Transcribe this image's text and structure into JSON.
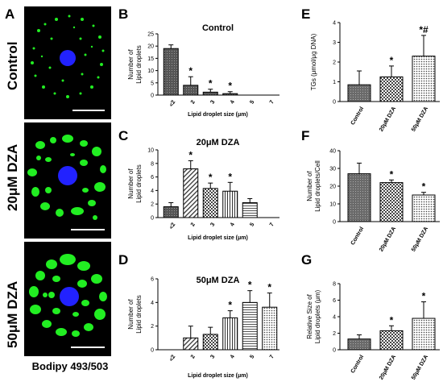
{
  "figure": {
    "panel_letters": [
      "A",
      "B",
      "C",
      "D",
      "E",
      "F",
      "G"
    ],
    "row_labels": [
      "Control",
      "20μM DZA",
      "50μM DZA"
    ],
    "stain_label": "Bodipy 493/503",
    "colors": {
      "background": "#000000",
      "lipid": "#22ee22",
      "nucleus": "#2222ff",
      "scale_bar": "#ffffff"
    }
  },
  "chart_data": [
    {
      "id": "B",
      "type": "bar",
      "title": "Control",
      "categories": [
        "<2",
        "2",
        "3",
        "4",
        "5",
        "7"
      ],
      "values": [
        19,
        4,
        1.2,
        0.6,
        0,
        0
      ],
      "errors": [
        1.5,
        3.5,
        1.2,
        0.8,
        0,
        0
      ],
      "significance": [
        "",
        "*",
        "*",
        "*",
        "",
        ""
      ],
      "ylabel": "Number of\nLipid droplets",
      "xlabel": "Lipid droplet size (μm)",
      "ylim": [
        0,
        25
      ],
      "yticks": [
        "0",
        "5",
        "10",
        "15",
        "20",
        "25"
      ],
      "xtick_rotated": true,
      "pattern": "dark"
    },
    {
      "id": "C",
      "type": "bar",
      "title": "20μM DZA",
      "categories": [
        "<2",
        "2",
        "3",
        "4",
        "5",
        "7"
      ],
      "values": [
        1.6,
        7.2,
        4.3,
        3.9,
        2.2,
        0
      ],
      "errors": [
        0.6,
        1.2,
        0.8,
        1.3,
        0.6,
        0
      ],
      "significance": [
        "",
        "*",
        "*",
        "*",
        "",
        ""
      ],
      "ylabel": "Number of\nLipid droplets",
      "xlabel": "Lipid droplet size (μm)",
      "ylim": [
        0,
        10
      ],
      "yticks": [
        "0",
        "2",
        "4",
        "6",
        "8",
        "10"
      ],
      "xtick_rotated": true,
      "pattern": "mixed"
    },
    {
      "id": "D",
      "type": "bar",
      "title": "50μM DZA",
      "categories": [
        "<2",
        "2",
        "3",
        "4",
        "5",
        "7"
      ],
      "values": [
        0,
        1,
        1.3,
        2.7,
        4,
        3.6
      ],
      "errors": [
        0,
        1,
        0.6,
        0.6,
        1,
        1.2
      ],
      "significance": [
        "",
        "",
        "",
        "*",
        "*",
        "*"
      ],
      "ylabel": "Number of\nLipid droplets",
      "xlabel": "Lipid droplet size (μm)",
      "ylim": [
        0,
        6
      ],
      "yticks": [
        "0",
        "2",
        "4",
        "6"
      ],
      "xtick_rotated": true,
      "pattern": "mixed"
    },
    {
      "id": "E",
      "type": "bar",
      "title": "",
      "categories": [
        "Control",
        "20μM DZA",
        "50μM DZA"
      ],
      "values": [
        0.85,
        1.25,
        2.3
      ],
      "errors": [
        0.7,
        0.55,
        1.05
      ],
      "significance": [
        "",
        "*",
        "*#"
      ],
      "ylabel": "TGs (μmol/μg DNA)",
      "xlabel": "",
      "ylim": [
        0,
        4
      ],
      "yticks": [
        "0",
        "1",
        "2",
        "3",
        "4"
      ],
      "xtick_rotated": true,
      "pattern": "triplet"
    },
    {
      "id": "F",
      "type": "bar",
      "title": "",
      "categories": [
        "Control",
        "20μM DZA",
        "50μM DZA"
      ],
      "values": [
        27,
        22,
        15
      ],
      "errors": [
        6,
        1.5,
        1.5
      ],
      "significance": [
        "",
        "*",
        "*"
      ],
      "ylabel": "Number of\nLipid droplets/Cell",
      "xlabel": "",
      "ylim": [
        0,
        40
      ],
      "yticks": [
        "0",
        "10",
        "20",
        "30",
        "40"
      ],
      "xtick_rotated": true,
      "pattern": "triplet"
    },
    {
      "id": "G",
      "type": "bar",
      "title": "",
      "categories": [
        "Control",
        "20μM DZA",
        "50μM DZA"
      ],
      "values": [
        1.3,
        2.3,
        3.8
      ],
      "errors": [
        0.5,
        0.6,
        2
      ],
      "significance": [
        "",
        "*",
        "*"
      ],
      "ylabel": "Relative Size of\nLipid droplets (μm)",
      "xlabel": "",
      "ylim": [
        0,
        8
      ],
      "yticks": [
        "0",
        "2",
        "4",
        "6",
        "8"
      ],
      "xtick_rotated": true,
      "pattern": "triplet"
    }
  ]
}
